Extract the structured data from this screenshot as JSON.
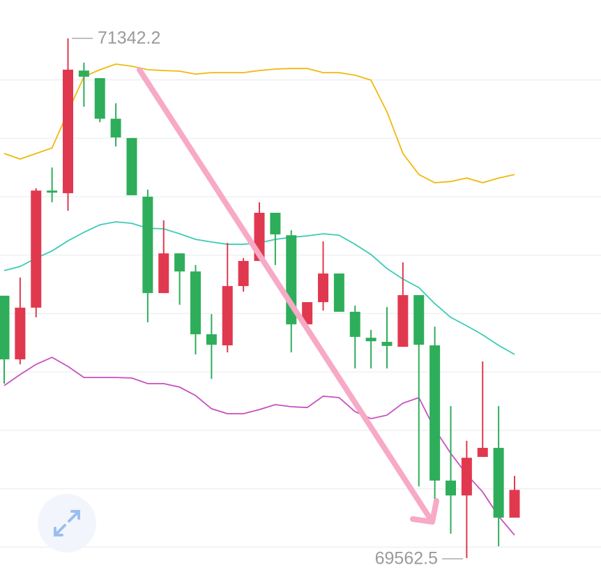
{
  "chart_data": {
    "type": "candlestick",
    "open": [
      70461,
      70243,
      70420,
      70821,
      70812,
      71232,
      71206,
      71067,
      71001,
      70800,
      70470,
      70606,
      70544,
      70329,
      70291,
      70494,
      70580,
      70745,
      70668,
      70363,
      70439,
      70537,
      70406,
      70317,
      70303,
      70286,
      70463,
      70291,
      69828,
      69777,
      69909,
      69940,
      69701
    ],
    "high": [
      70461,
      70523,
      70829,
      70900,
      71342.2,
      71259,
      71206,
      71120,
      71001,
      70824,
      70719,
      70606,
      70566,
      70398,
      70642,
      70590,
      70781,
      70745,
      70685,
      70439,
      70647,
      70537,
      70427,
      70344,
      70422,
      70575,
      70463,
      70355,
      70083,
      69964,
      70236,
      70083,
      69844
    ],
    "low": [
      70160,
      70226,
      70387,
      70781,
      70752,
      71108,
      71055,
      70972,
      70805,
      70370,
      70470,
      70430,
      70260,
      70176,
      70267,
      70475,
      70580,
      70566,
      70267,
      70334,
      70410,
      70406,
      70212,
      70212,
      70212,
      70286,
      69808,
      69749,
      69646,
      69562.5,
      69909,
      69603,
      69701
    ],
    "close": [
      70243,
      70420,
      70821,
      70814,
      71235,
      71211,
      71067,
      71003,
      70805,
      70470,
      70606,
      70544,
      70329,
      70293,
      70494,
      70580,
      70745,
      70671,
      70363,
      70439,
      70537,
      70406,
      70320,
      70305,
      70289,
      70463,
      70293,
      69828,
      69777,
      69906,
      69940,
      69701,
      69796
    ],
    "up_color": "#e0394f",
    "down_color": "#2eae5a",
    "bands": [
      {
        "color": "#f0b90b",
        "values": [
          70948,
          70929,
          70948,
          70967,
          71091,
          71211,
          71235,
          71254,
          71247,
          71235,
          71232,
          71230,
          71220,
          71225,
          71225,
          71225,
          71232,
          71237,
          71239,
          71239,
          71225,
          71225,
          71216,
          71199,
          71091,
          70948,
          70876,
          70848,
          70852,
          70864,
          70848,
          70864,
          70876
        ]
      },
      {
        "color": "#3ccbb4",
        "values": [
          70547,
          70561,
          70590,
          70614,
          70649,
          70678,
          70704,
          70714,
          70709,
          70692,
          70690,
          70673,
          70654,
          70645,
          70637,
          70637,
          70642,
          70654,
          70661,
          70666,
          70673,
          70668,
          70637,
          70602,
          70554,
          70518,
          70489,
          70434,
          70387,
          70358,
          70327,
          70291,
          70260
        ]
      },
      {
        "color": "#c84fbf",
        "values": [
          70153,
          70191,
          70226,
          70250,
          70219,
          70181,
          70181,
          70181,
          70179,
          70160,
          70160,
          70148,
          70119,
          70074,
          70057,
          70057,
          70071,
          70088,
          70081,
          70078,
          70117,
          70112,
          70064,
          70040,
          70052,
          70093,
          70112,
          70004,
          69921,
          69849,
          69789,
          69706,
          69641
        ]
      }
    ],
    "ylim": [
      69562.5,
      71342.2
    ],
    "yticks": [
      69600,
      69800,
      70000,
      70200,
      70400,
      70600,
      70800,
      71000,
      71200
    ],
    "grid": true
  }
}
